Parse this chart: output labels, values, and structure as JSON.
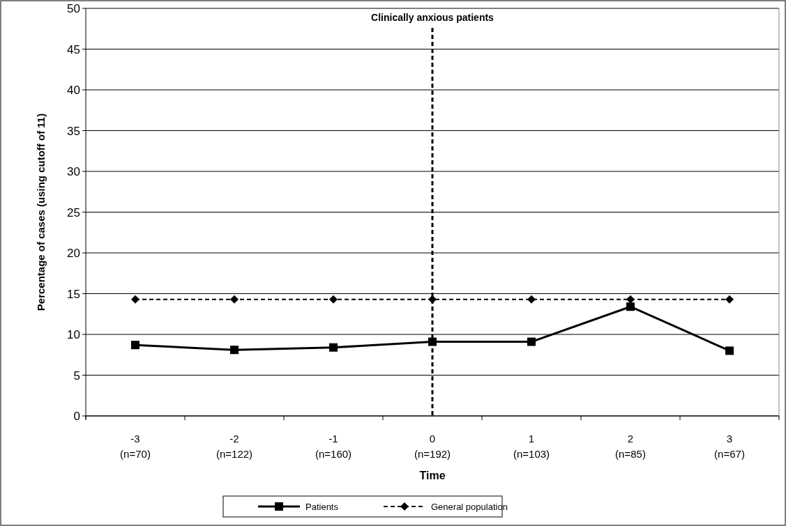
{
  "chart_data": {
    "type": "line",
    "title": "Clinically anxious patients",
    "xlabel": "Time",
    "ylabel": "Percentage of cases (using cutoff  of 11)",
    "categories": [
      "-3 (n=70)",
      "-2 (n=122)",
      "-1 (n=160)",
      "0 (n=192)",
      "1 (n=103)",
      "2 (n=85)",
      "3 (n=67)"
    ],
    "ylim": [
      0,
      50
    ],
    "yticks": [
      0,
      5,
      10,
      15,
      20,
      25,
      30,
      35,
      40,
      45,
      50
    ],
    "grid": "y",
    "legend": "bottom",
    "series": [
      {
        "name": "Patients",
        "color": "#000000",
        "marker": "square",
        "line_style": "solid",
        "values": [
          8.7,
          8.1,
          8.4,
          9.1,
          9.1,
          13.4,
          8.0
        ]
      },
      {
        "name": "General population",
        "color": "#000000",
        "marker": "diamond",
        "line_style": "dashed",
        "values": [
          14.3,
          14.3,
          14.3,
          14.3,
          14.3,
          14.3,
          14.3
        ]
      }
    ],
    "ref_lines": [
      {
        "axis": "x",
        "value": "0 (n=192)",
        "color": "#000000",
        "line_style": "dashed"
      }
    ]
  }
}
